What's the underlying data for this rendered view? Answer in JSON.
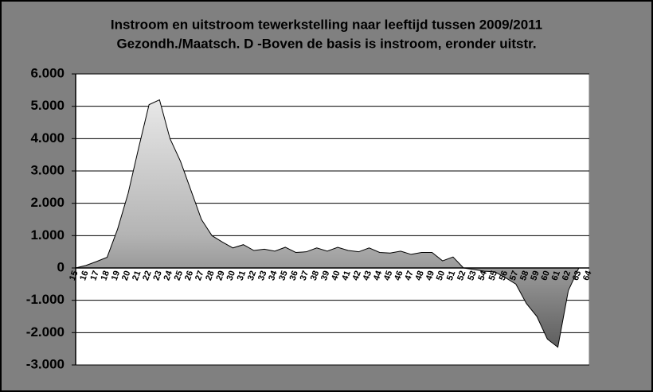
{
  "chart_data": {
    "type": "area",
    "title": "Instroom en uitstroom tewerkstelling naar leeftijd tussen 2009/2011",
    "subtitle": "Gezondh./Maatsch. D -Boven de basis is instroom, eronder uitstr.",
    "categories": [
      "15",
      "16",
      "17",
      "18",
      "19",
      "20",
      "21",
      "22",
      "23",
      "24",
      "25",
      "26",
      "27",
      "28",
      "29",
      "30",
      "31",
      "32",
      "33",
      "34",
      "35",
      "36",
      "37",
      "38",
      "39",
      "40",
      "41",
      "42",
      "43",
      "44",
      "45",
      "46",
      "47",
      "48",
      "49",
      "50",
      "51",
      "52",
      "53",
      "54",
      "55",
      "56",
      "57",
      "58",
      "59",
      "60",
      "61",
      "62",
      "63",
      "64"
    ],
    "values": [
      0,
      80,
      200,
      330,
      1200,
      2300,
      3700,
      5050,
      5200,
      4000,
      3300,
      2400,
      1500,
      1000,
      800,
      620,
      720,
      540,
      580,
      520,
      640,
      480,
      500,
      620,
      520,
      640,
      540,
      500,
      620,
      480,
      460,
      520,
      420,
      480,
      480,
      220,
      340,
      0,
      -50,
      -100,
      -120,
      -300,
      -500,
      -1100,
      -1500,
      -2200,
      -2450,
      -700,
      0,
      0
    ],
    "color": "#b4b4b4",
    "ylim": [
      -3000,
      6000
    ],
    "yticks": [
      {
        "value": -3000,
        "label": "-3.000"
      },
      {
        "value": -2000,
        "label": "-2.000"
      },
      {
        "value": -1000,
        "label": "-1.000"
      },
      0,
      {
        "value": 1000,
        "label": "1.000"
      },
      {
        "value": 2000,
        "label": "2.000"
      },
      {
        "value": 3000,
        "label": "3.000"
      },
      {
        "value": 4000,
        "label": "4.000"
      },
      {
        "value": 5000,
        "label": "5.000"
      },
      {
        "value": 6000,
        "label": "6.000"
      }
    ],
    "grid": true
  }
}
